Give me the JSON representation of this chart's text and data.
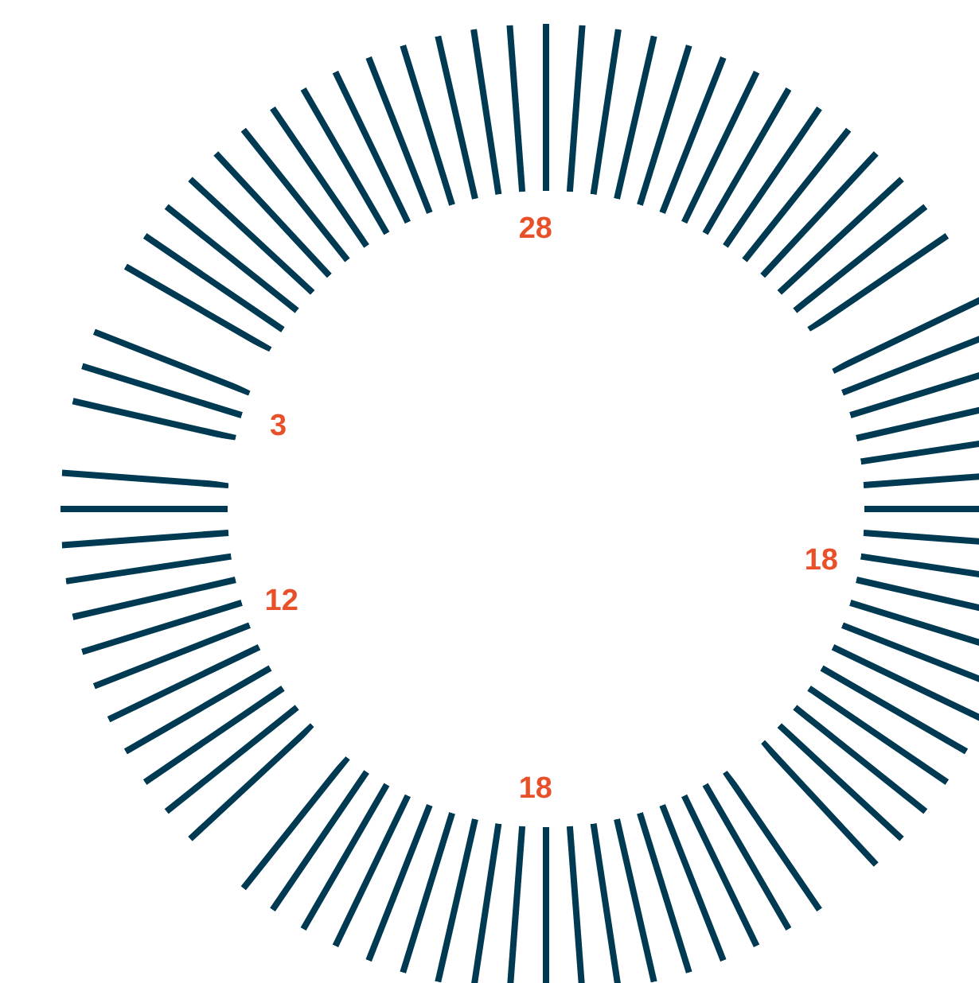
{
  "chart_data": {
    "type": "donut",
    "categories": [
      null,
      null,
      null,
      null,
      null
    ],
    "values": [
      28,
      18,
      18,
      12,
      3
    ],
    "colors": [
      "#003a52",
      "#003a52",
      "#003a52",
      "#003a52",
      "#003a52"
    ],
    "data_labels": true
  }
}
